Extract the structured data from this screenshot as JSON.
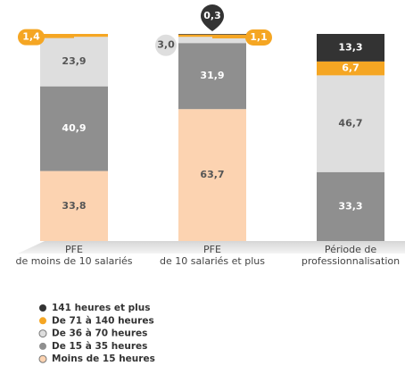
{
  "chart_data": {
    "type": "stacked-bar",
    "categories": [
      [
        "PFE",
        "de moins de 10 salariés"
      ],
      [
        "PFE",
        "de 10 salariés et plus"
      ],
      [
        "Période de",
        "professionnalisation"
      ]
    ],
    "ylim": [
      0,
      100
    ],
    "series": [
      {
        "name": "Moins de 15 heures",
        "color": "#fcd3b1",
        "values": [
          33.8,
          63.7,
          null
        ],
        "value_labels": [
          "33,8",
          "63,7",
          null
        ]
      },
      {
        "name": "De 15 à 35 heures",
        "color": "#8f8f8f",
        "values": [
          40.9,
          31.9,
          33.3
        ],
        "value_labels": [
          "40,9",
          "31,9",
          "33,3"
        ]
      },
      {
        "name": "De 36 à 70 heures",
        "color": "#dedede",
        "values": [
          23.9,
          3.0,
          46.7
        ],
        "value_labels": [
          "23,9",
          "3,0",
          "46,7"
        ]
      },
      {
        "name": "De 71 à 140 heures",
        "color": "#f5a623",
        "values": [
          1.4,
          1.1,
          6.7
        ],
        "value_labels": [
          "1,4",
          "1,1",
          "6,7"
        ]
      },
      {
        "name": "141 heures et plus",
        "color": "#333333",
        "values": [
          null,
          0.3,
          13.3
        ],
        "value_labels": [
          null,
          "0,3",
          "13,3"
        ]
      }
    ]
  }
}
